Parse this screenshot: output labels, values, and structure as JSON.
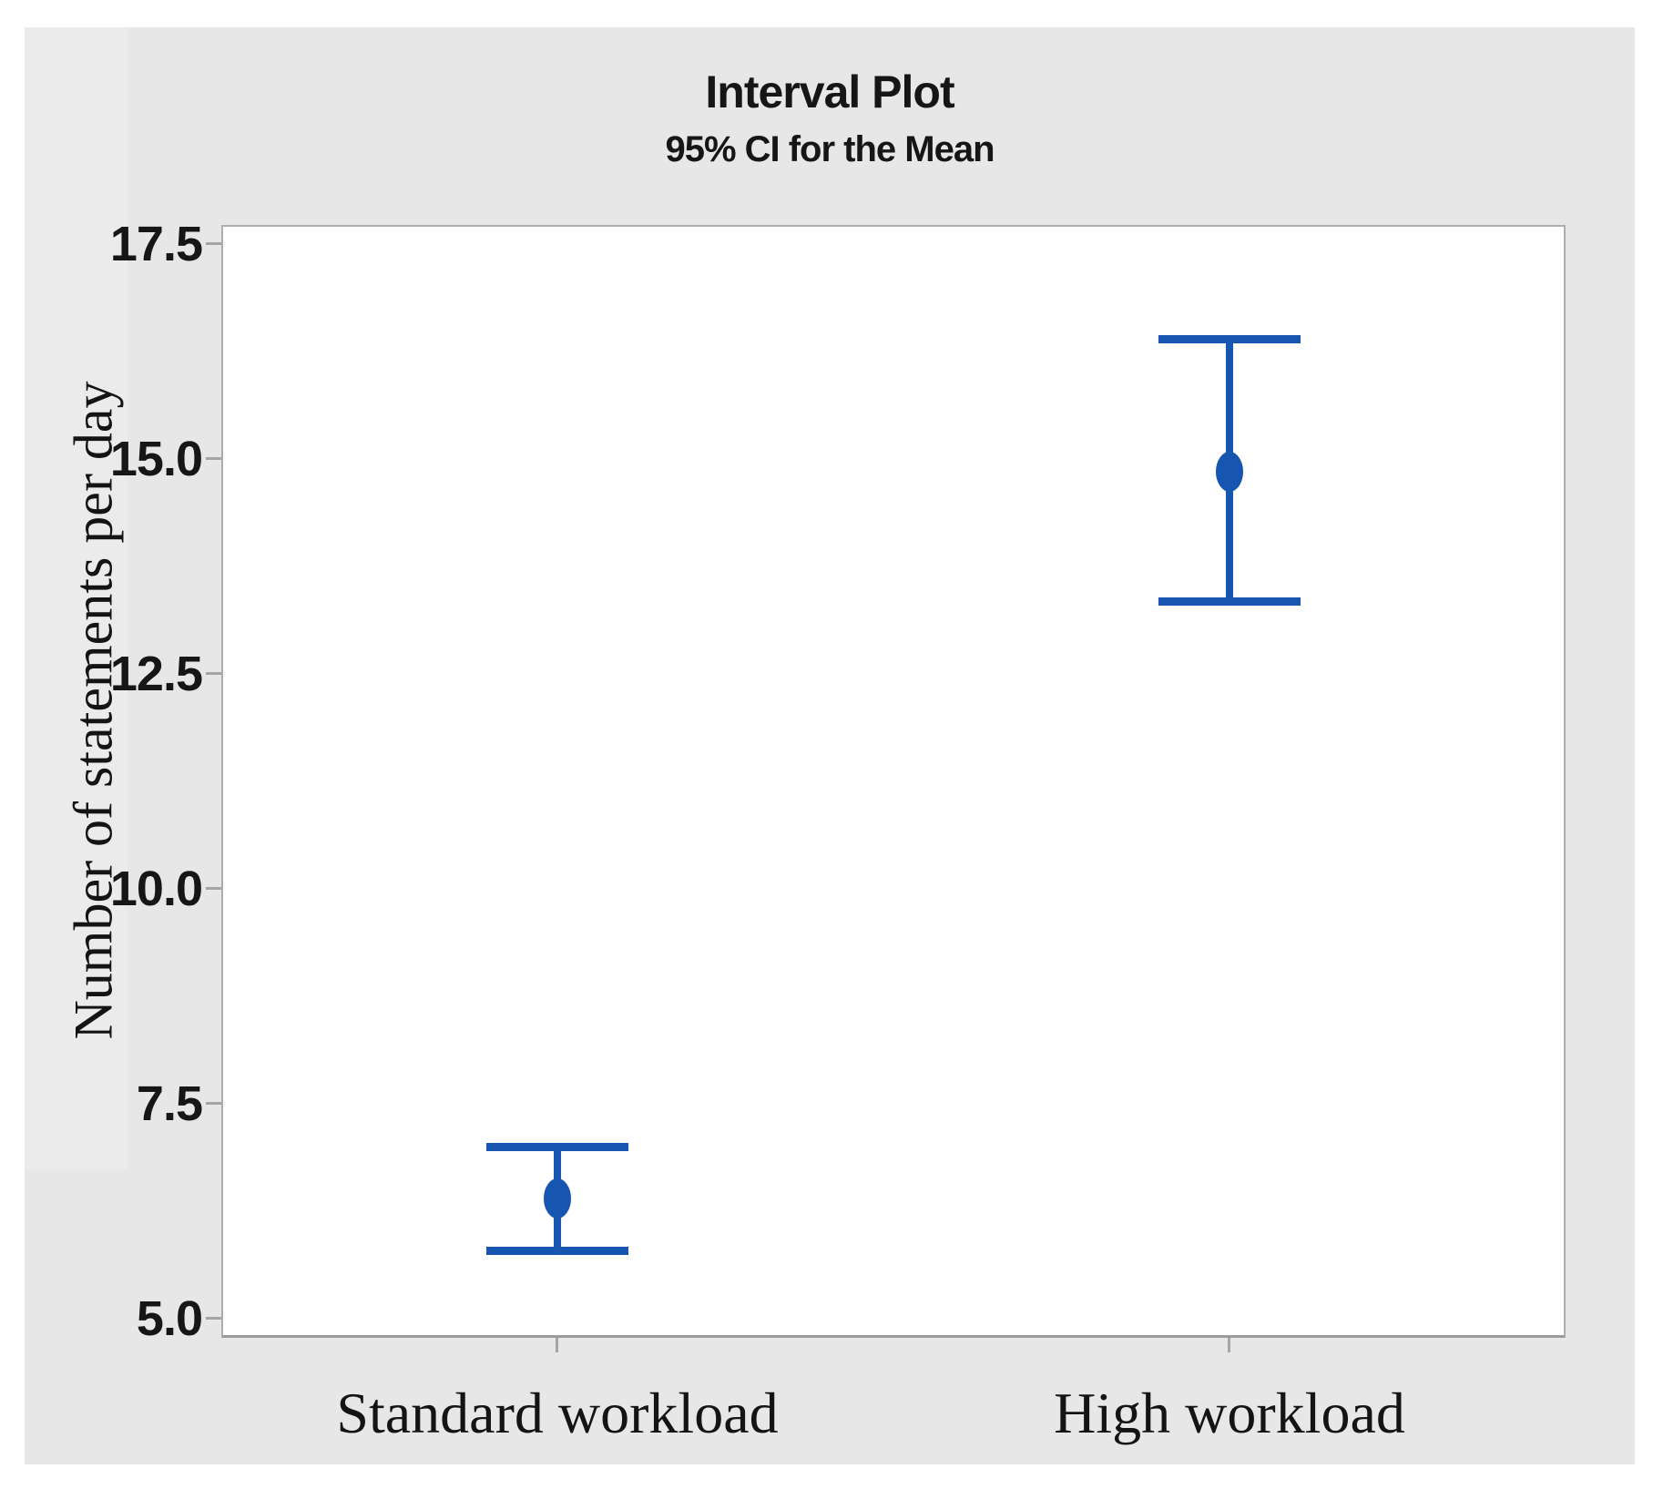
{
  "colors": {
    "figure_bg": "#e7e7e7",
    "plot_bg": "#ffffff",
    "interval_blue": "#1656b0",
    "axis_gray": "#a9a9a9",
    "tick_gray": "#a5a5a5",
    "text": "#161616"
  },
  "chart_data": {
    "type": "interval-plot",
    "title": "Interval Plot",
    "subtitle": "95% CI for the Mean",
    "ylabel": "Number of statements per day",
    "xlabel": "",
    "categories": [
      "Standard workload",
      "High workload"
    ],
    "series": [
      {
        "name": "95% CI for the Mean",
        "means": [
          6.4,
          14.85
        ],
        "ci_low": [
          5.8,
          13.35
        ],
        "ci_high": [
          7.0,
          16.4
        ]
      }
    ],
    "yticks": [
      5.0,
      7.5,
      10.0,
      12.5,
      15.0,
      17.5
    ],
    "ytick_labels": [
      "5.0",
      "7.5",
      "10.0",
      "12.5",
      "15.0",
      "17.5"
    ],
    "ylim": [
      4.78,
      17.72
    ],
    "grid": false,
    "legend": "none",
    "marker": "filled-circle",
    "point_color": "#1656b0"
  }
}
